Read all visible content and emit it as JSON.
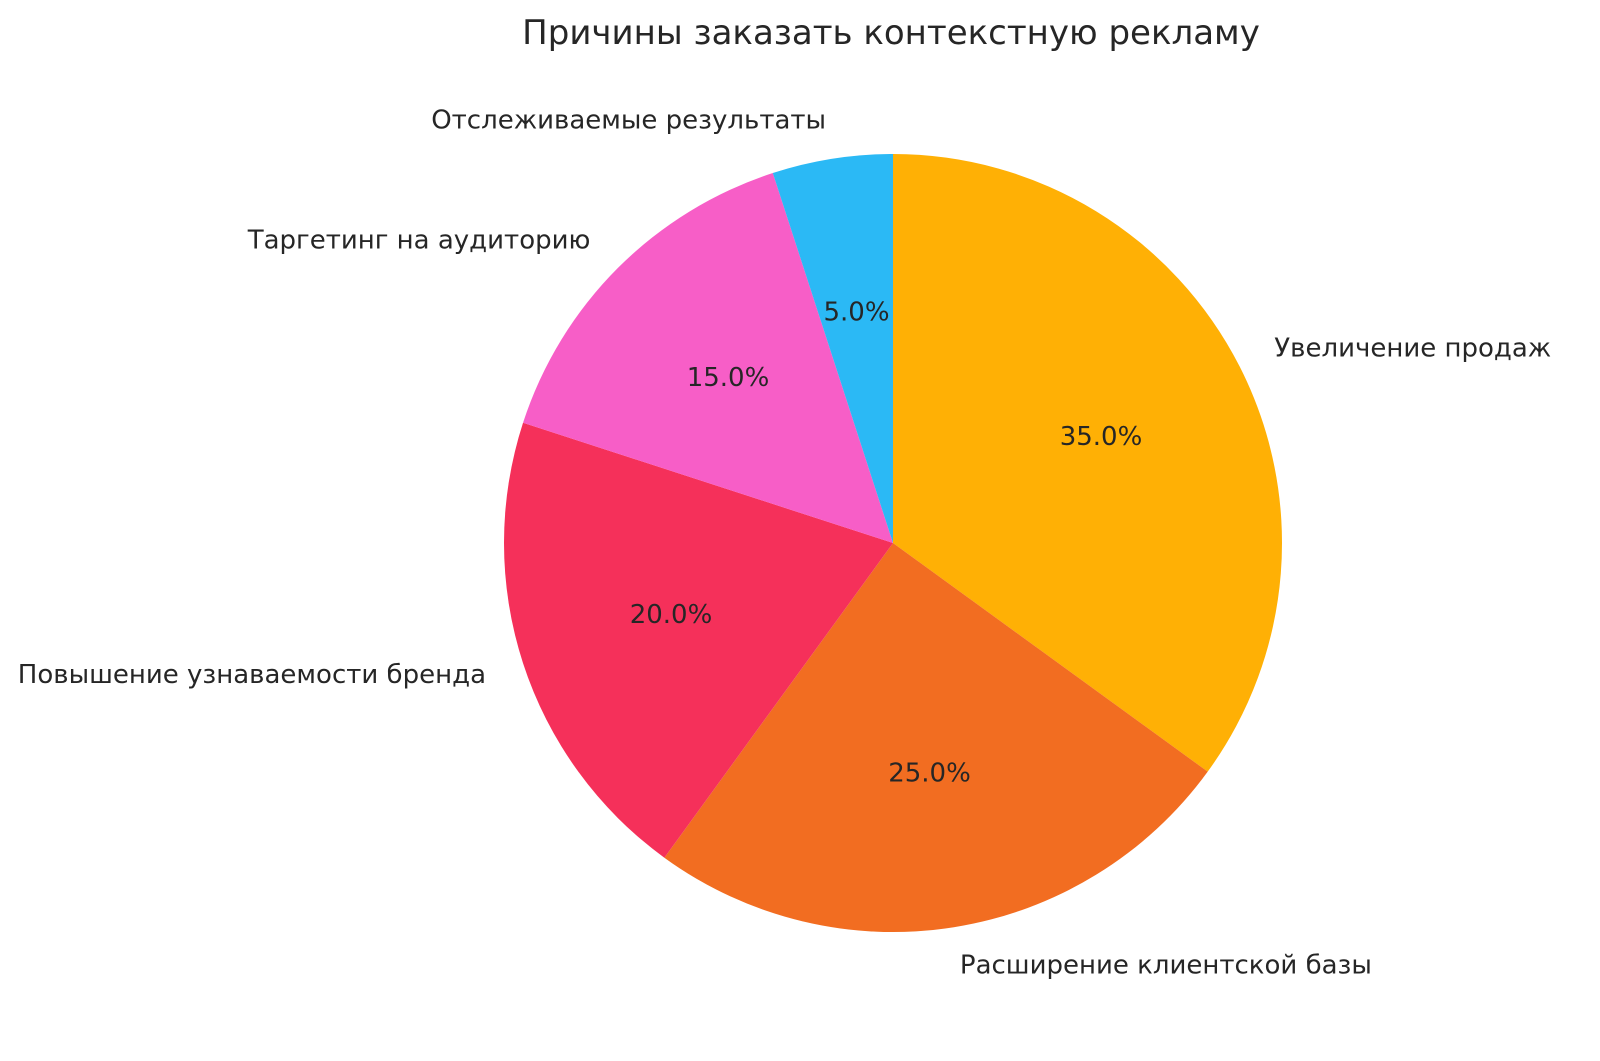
{
  "chart_data": {
    "type": "pie",
    "title": "Причины заказать контекстную рекламу",
    "labels": [
      "Увеличение продаж",
      "Расширение клиентской базы",
      "Повышение узнаваемости бренда",
      "Таргетинг на аудиторию",
      "Отслеживаемые результаты"
    ],
    "values": [
      35.0,
      25.0,
      20.0,
      15.0,
      5.0
    ],
    "pct_labels": [
      "35.0%",
      "25.0%",
      "20.0%",
      "15.0%",
      "5.0%"
    ],
    "colors": [
      "#FFB005",
      "#F26D21",
      "#F5305A",
      "#F75EC7",
      "#2BB9F5"
    ],
    "start_angle": 90,
    "counterclock": false,
    "pct_distance": 0.6,
    "label_distance": 1.1,
    "text_color": "#262626",
    "background": "#ffffff",
    "legend": "none"
  }
}
